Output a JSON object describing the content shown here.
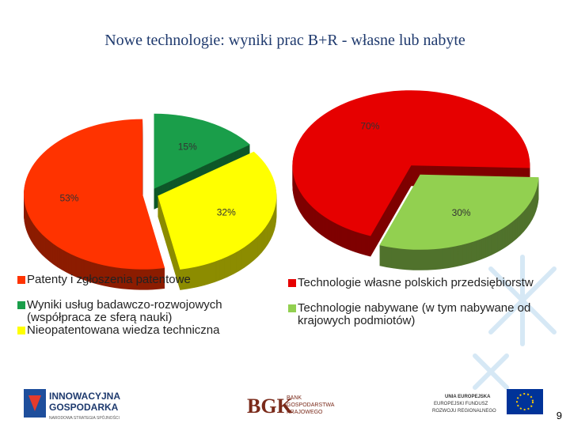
{
  "title": "Nowe technologie: wyniki prac B+R - własne lub nabyte",
  "chart_data": [
    {
      "type": "pie",
      "categories": [
        "Patenty i zgłoszenia patentowe",
        "Wyniki usług badawczo-rozwojowych (współpraca ze sferą nauki)",
        "Nieopatentowana wiedza techniczna"
      ],
      "values": [
        53,
        15,
        32
      ],
      "value_labels": [
        "53%",
        "15%",
        "32%"
      ],
      "colors": [
        "#ff3300",
        "#1a9e4a",
        "#ffff00"
      ]
    },
    {
      "type": "pie",
      "categories": [
        "Technologie własne polskich przedsiębiorstw",
        "Technologie nabywane (w tym nabywane od krajowych podmiotów)"
      ],
      "values": [
        70,
        30
      ],
      "value_labels": [
        "70%",
        "30%"
      ],
      "colors": [
        "#e60000",
        "#92d050"
      ]
    }
  ],
  "footer": {
    "logo1": [
      "INNOWACYJNA",
      "GOSPODARKA",
      "NARODOWA STRATEGIA SPÓJNOŚCI"
    ],
    "logo2": [
      "BANK",
      "GOSPODARSTWA",
      "KRAJOWEGO"
    ],
    "logo3": [
      "UNIA EUROPEJSKA",
      "EUROPEJSKI FUNDUSZ",
      "ROZWOJU REGIONALNEGO"
    ],
    "page_number": 9
  }
}
